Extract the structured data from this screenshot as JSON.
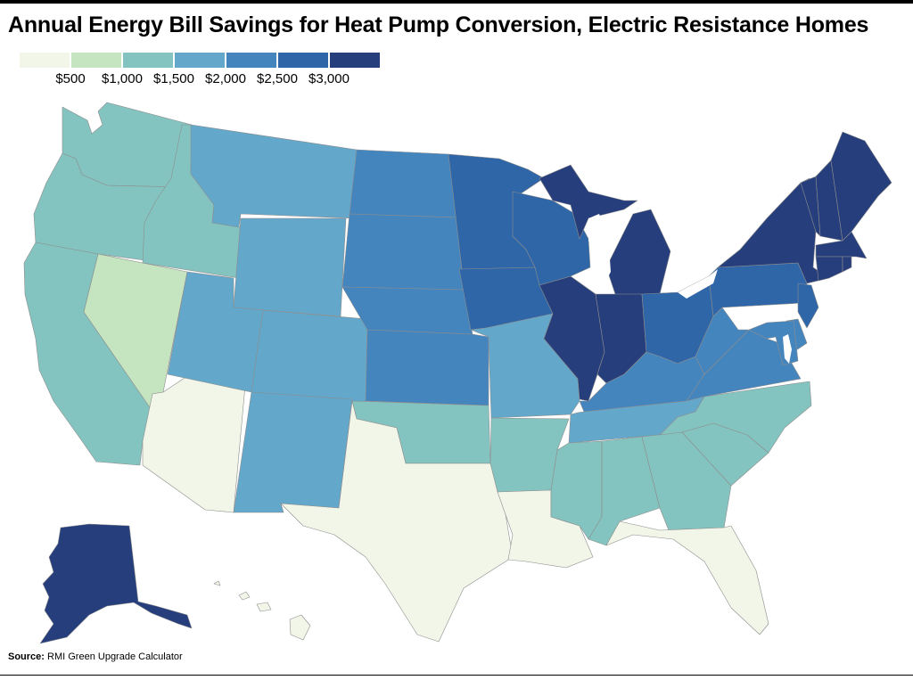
{
  "title": "Annual Energy Bill Savings for Heat Pump Conversion, Electric Resistance Homes",
  "legend": {
    "bins": [
      {
        "color": "#f1f6e9"
      },
      {
        "color": "#c5e4c0"
      },
      {
        "color": "#84c4c0"
      },
      {
        "color": "#63a7cb"
      },
      {
        "color": "#4585be"
      },
      {
        "color": "#2e66a8"
      },
      {
        "color": "#263f7c"
      }
    ],
    "labels": [
      "$500",
      "$1,000",
      "$1,500",
      "$2,000",
      "$2,500",
      "$3,000"
    ]
  },
  "source": {
    "label": "Source:",
    "text": "RMI Green Upgrade Calculator"
  },
  "states": [
    {
      "name": "WA",
      "bin": 3
    },
    {
      "name": "OR",
      "bin": 3
    },
    {
      "name": "CA",
      "bin": 3
    },
    {
      "name": "ID",
      "bin": 3
    },
    {
      "name": "NV",
      "bin": 2
    },
    {
      "name": "AZ",
      "bin": 1
    },
    {
      "name": "MT",
      "bin": 4
    },
    {
      "name": "WY",
      "bin": 4
    },
    {
      "name": "UT",
      "bin": 4
    },
    {
      "name": "CO",
      "bin": 4
    },
    {
      "name": "NM",
      "bin": 4
    },
    {
      "name": "ND",
      "bin": 5
    },
    {
      "name": "SD",
      "bin": 5
    },
    {
      "name": "NE",
      "bin": 5
    },
    {
      "name": "KS",
      "bin": 5
    },
    {
      "name": "OK",
      "bin": 3
    },
    {
      "name": "TX",
      "bin": 1
    },
    {
      "name": "MN",
      "bin": 6
    },
    {
      "name": "IA",
      "bin": 6
    },
    {
      "name": "MO",
      "bin": 4
    },
    {
      "name": "AR",
      "bin": 3
    },
    {
      "name": "LA",
      "bin": 1
    },
    {
      "name": "WI",
      "bin": 6
    },
    {
      "name": "IL",
      "bin": 7
    },
    {
      "name": "MI",
      "bin": 7
    },
    {
      "name": "IN",
      "bin": 7
    },
    {
      "name": "OH",
      "bin": 6
    },
    {
      "name": "KY",
      "bin": 5
    },
    {
      "name": "TN",
      "bin": 4
    },
    {
      "name": "MS",
      "bin": 3
    },
    {
      "name": "AL",
      "bin": 3
    },
    {
      "name": "GA",
      "bin": 3
    },
    {
      "name": "FL",
      "bin": 1
    },
    {
      "name": "SC",
      "bin": 3
    },
    {
      "name": "NC",
      "bin": 3
    },
    {
      "name": "VA",
      "bin": 5
    },
    {
      "name": "WV",
      "bin": 5
    },
    {
      "name": "PA",
      "bin": 6
    },
    {
      "name": "NY",
      "bin": 7
    },
    {
      "name": "VT",
      "bin": 7
    },
    {
      "name": "NH",
      "bin": 7
    },
    {
      "name": "ME",
      "bin": 7
    },
    {
      "name": "MA",
      "bin": 7
    },
    {
      "name": "CT",
      "bin": 7
    },
    {
      "name": "RI",
      "bin": 7
    },
    {
      "name": "NJ",
      "bin": 6
    },
    {
      "name": "DE",
      "bin": 5
    },
    {
      "name": "MD",
      "bin": 5
    },
    {
      "name": "AK",
      "bin": 7
    },
    {
      "name": "HI",
      "bin": 1
    }
  ]
}
